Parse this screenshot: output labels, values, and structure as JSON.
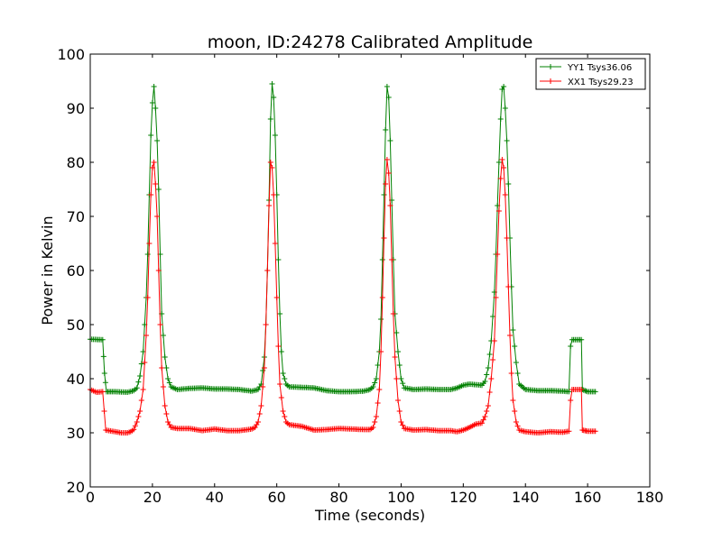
{
  "chart_data": {
    "type": "line",
    "title": "moon, ID:24278 Calibrated Amplitude",
    "xlabel": "Time (seconds)",
    "ylabel": "Power in Kelvin",
    "xlim": [
      0,
      180
    ],
    "ylim": [
      20,
      100
    ],
    "xticks": [
      0,
      20,
      40,
      60,
      80,
      100,
      120,
      140,
      160,
      180
    ],
    "yticks": [
      20,
      30,
      40,
      50,
      60,
      70,
      80,
      90,
      100
    ],
    "grid": false,
    "legend_position": "top-right",
    "marker": "+",
    "series": [
      {
        "name": "YY1 Tsys36.06",
        "color": "#008000",
        "points": [
          [
            0,
            47.3
          ],
          [
            4,
            47.2
          ],
          [
            4.6,
            41
          ],
          [
            5.2,
            37.6
          ],
          [
            8,
            37.6
          ],
          [
            12,
            37.5
          ],
          [
            14,
            37.8
          ],
          [
            15,
            38.3
          ],
          [
            16,
            40.5
          ],
          [
            17,
            45
          ],
          [
            18,
            55
          ],
          [
            18.5,
            63
          ],
          [
            19,
            74
          ],
          [
            19.5,
            85
          ],
          [
            20,
            91
          ],
          [
            20.5,
            94
          ],
          [
            21,
            90
          ],
          [
            21.5,
            84
          ],
          [
            22,
            75
          ],
          [
            22.5,
            63
          ],
          [
            23,
            52
          ],
          [
            24,
            44
          ],
          [
            25,
            40
          ],
          [
            26,
            38.5
          ],
          [
            28,
            38
          ],
          [
            32,
            38.2
          ],
          [
            36,
            38.3
          ],
          [
            40,
            38.1
          ],
          [
            44,
            38.1
          ],
          [
            48,
            38
          ],
          [
            52,
            37.7
          ],
          [
            54,
            38
          ],
          [
            55,
            39
          ],
          [
            56,
            44
          ],
          [
            56.5,
            50
          ],
          [
            57,
            60
          ],
          [
            57.5,
            73
          ],
          [
            58,
            88
          ],
          [
            58.5,
            94.5
          ],
          [
            59,
            92
          ],
          [
            59.5,
            85
          ],
          [
            60,
            74
          ],
          [
            60.5,
            62
          ],
          [
            61,
            52
          ],
          [
            61.5,
            45
          ],
          [
            62,
            41
          ],
          [
            63,
            39
          ],
          [
            64,
            38.5
          ],
          [
            68,
            38.4
          ],
          [
            72,
            38.3
          ],
          [
            76,
            37.8
          ],
          [
            80,
            37.6
          ],
          [
            84,
            37.6
          ],
          [
            88,
            37.7
          ],
          [
            90,
            38
          ],
          [
            91,
            38.5
          ],
          [
            92,
            40
          ],
          [
            93,
            45
          ],
          [
            93.5,
            51
          ],
          [
            94,
            62
          ],
          [
            94.5,
            74
          ],
          [
            95,
            86
          ],
          [
            95.5,
            94
          ],
          [
            96,
            92
          ],
          [
            96.5,
            84
          ],
          [
            97,
            73
          ],
          [
            97.5,
            62
          ],
          [
            98,
            52
          ],
          [
            99,
            45
          ],
          [
            100,
            40
          ],
          [
            101,
            38.3
          ],
          [
            104,
            38
          ],
          [
            108,
            38.1
          ],
          [
            112,
            38
          ],
          [
            116,
            38
          ],
          [
            118,
            38.3
          ],
          [
            120,
            38.8
          ],
          [
            122,
            39
          ],
          [
            124,
            38.9
          ],
          [
            126,
            38.8
          ],
          [
            127,
            39.5
          ],
          [
            128,
            42
          ],
          [
            129,
            47
          ],
          [
            130,
            56
          ],
          [
            130.5,
            63
          ],
          [
            131,
            72
          ],
          [
            131.5,
            80
          ],
          [
            132,
            88
          ],
          [
            132.5,
            93.5
          ],
          [
            133,
            94
          ],
          [
            133.5,
            90
          ],
          [
            134,
            84
          ],
          [
            134.5,
            76
          ],
          [
            135,
            66
          ],
          [
            135.5,
            57
          ],
          [
            136,
            49
          ],
          [
            137,
            43
          ],
          [
            138,
            39
          ],
          [
            140,
            38
          ],
          [
            144,
            37.8
          ],
          [
            148,
            37.8
          ],
          [
            152,
            37.7
          ],
          [
            154,
            37.6
          ],
          [
            154.5,
            46
          ],
          [
            155,
            47.2
          ],
          [
            157,
            47.2
          ],
          [
            158,
            47.2
          ],
          [
            158.3,
            38
          ],
          [
            160,
            37.6
          ],
          [
            162.5,
            37.6
          ]
        ]
      },
      {
        "name": "XX1 Tsys29.23",
        "color": "#ff0000",
        "points": [
          [
            0,
            38
          ],
          [
            2,
            37.5
          ],
          [
            4,
            37.6
          ],
          [
            4.5,
            34
          ],
          [
            5,
            30.5
          ],
          [
            8,
            30.2
          ],
          [
            10,
            30
          ],
          [
            12,
            30
          ],
          [
            13,
            30.2
          ],
          [
            14,
            30.6
          ],
          [
            15,
            32
          ],
          [
            16,
            34
          ],
          [
            17,
            38
          ],
          [
            18,
            48
          ],
          [
            18.5,
            55
          ],
          [
            19,
            65
          ],
          [
            19.5,
            74
          ],
          [
            20,
            79
          ],
          [
            20.5,
            80
          ],
          [
            21,
            76
          ],
          [
            21.5,
            70
          ],
          [
            22,
            60
          ],
          [
            22.5,
            50
          ],
          [
            23,
            42
          ],
          [
            24,
            35
          ],
          [
            25,
            32
          ],
          [
            26,
            31
          ],
          [
            28,
            30.8
          ],
          [
            32,
            30.8
          ],
          [
            36,
            30.4
          ],
          [
            40,
            30.7
          ],
          [
            44,
            30.4
          ],
          [
            48,
            30.4
          ],
          [
            52,
            30.7
          ],
          [
            53,
            31
          ],
          [
            54,
            32
          ],
          [
            55,
            35
          ],
          [
            56,
            42
          ],
          [
            56.5,
            50
          ],
          [
            57,
            60
          ],
          [
            57.5,
            72
          ],
          [
            58,
            80
          ],
          [
            58.5,
            79
          ],
          [
            59,
            74
          ],
          [
            59.5,
            65
          ],
          [
            60,
            55
          ],
          [
            60.5,
            46
          ],
          [
            61,
            39
          ],
          [
            62,
            34
          ],
          [
            63,
            32
          ],
          [
            64,
            31.5
          ],
          [
            68,
            31.2
          ],
          [
            72,
            30.5
          ],
          [
            76,
            30.6
          ],
          [
            80,
            30.8
          ],
          [
            84,
            30.7
          ],
          [
            88,
            30.6
          ],
          [
            90,
            30.6
          ],
          [
            91,
            31
          ],
          [
            92,
            33
          ],
          [
            93,
            38
          ],
          [
            93.5,
            45
          ],
          [
            94,
            55
          ],
          [
            94.5,
            66
          ],
          [
            95,
            76
          ],
          [
            95.5,
            80.5
          ],
          [
            96,
            78
          ],
          [
            96.5,
            72
          ],
          [
            97,
            62
          ],
          [
            97.5,
            52
          ],
          [
            98,
            44
          ],
          [
            99,
            36
          ],
          [
            100,
            32
          ],
          [
            101,
            30.8
          ],
          [
            104,
            30.5
          ],
          [
            108,
            30.6
          ],
          [
            112,
            30.4
          ],
          [
            116,
            30.4
          ],
          [
            118,
            30.2
          ],
          [
            120,
            30.5
          ],
          [
            122,
            31
          ],
          [
            124,
            31.6
          ],
          [
            126,
            31.8
          ],
          [
            127,
            33
          ],
          [
            128,
            35
          ],
          [
            129,
            40
          ],
          [
            130,
            47
          ],
          [
            130.5,
            55
          ],
          [
            131,
            63
          ],
          [
            131.5,
            71
          ],
          [
            132,
            77
          ],
          [
            132.5,
            80.5
          ],
          [
            133,
            79
          ],
          [
            133.5,
            74
          ],
          [
            134,
            66
          ],
          [
            134.5,
            57
          ],
          [
            135,
            48
          ],
          [
            135.5,
            41
          ],
          [
            136,
            36
          ],
          [
            137,
            32
          ],
          [
            138,
            30.5
          ],
          [
            140,
            30.2
          ],
          [
            144,
            30
          ],
          [
            148,
            30.2
          ],
          [
            152,
            30.1
          ],
          [
            154,
            30.3
          ],
          [
            154.5,
            36
          ],
          [
            155,
            38
          ],
          [
            158,
            38
          ],
          [
            158.3,
            30.5
          ],
          [
            160,
            30.3
          ],
          [
            162.5,
            30.3
          ]
        ]
      }
    ]
  }
}
